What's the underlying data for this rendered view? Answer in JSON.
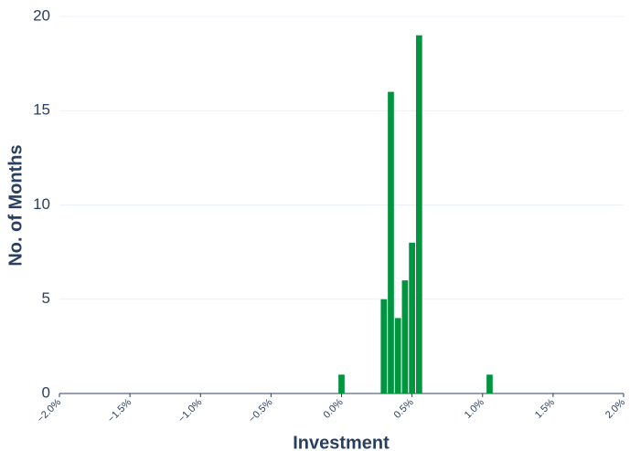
{
  "chart_data": {
    "type": "histogram",
    "xlabel": "Investment",
    "ylabel": "No. of Months",
    "bins": [
      -0.025,
      0.025,
      0.075,
      0.125,
      0.175,
      0.225,
      0.275,
      0.325,
      0.375,
      0.425,
      0.475,
      0.525,
      0.575,
      0.625,
      0.675,
      0.725,
      0.775,
      0.825,
      0.875,
      0.925,
      0.975,
      1.025,
      1.075
    ],
    "values": [
      1,
      0,
      0,
      0,
      0,
      0,
      5,
      16,
      4,
      6,
      8,
      19,
      0,
      0,
      0,
      0,
      0,
      0,
      0,
      0,
      0,
      1
    ],
    "color": "#009640",
    "xlim": [
      -2,
      2
    ],
    "xticks": [
      {
        "value": -2,
        "label": "−2.0%"
      },
      {
        "value": -1.5,
        "label": "−1.5%"
      },
      {
        "value": -1,
        "label": "−1.0%"
      },
      {
        "value": -0.5,
        "label": "−0.5%"
      },
      {
        "value": 0,
        "label": "0.0%"
      },
      {
        "value": 0.5,
        "label": "0.5%"
      },
      {
        "value": 1,
        "label": "1.0%"
      },
      {
        "value": 1.5,
        "label": "1.5%"
      },
      {
        "value": 2,
        "label": "2.0%"
      }
    ],
    "ylim": [
      0,
      20
    ],
    "yticks": [
      0,
      5,
      10,
      15,
      20
    ],
    "grid": true
  }
}
